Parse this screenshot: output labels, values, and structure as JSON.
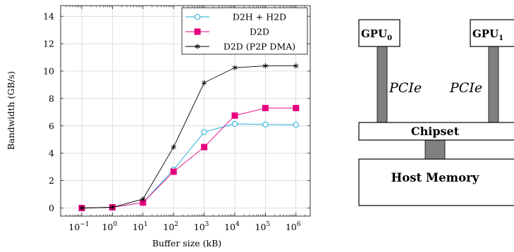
{
  "chart_data": {
    "type": "line",
    "x_scale": "log",
    "x": [
      0.1,
      1,
      10,
      100,
      1000,
      10000,
      100000,
      1000000
    ],
    "x_ticks": [
      {
        "base": "10",
        "exp": "−1"
      },
      {
        "base": "10",
        "exp": "0"
      },
      {
        "base": "10",
        "exp": "1"
      },
      {
        "base": "10",
        "exp": "2"
      },
      {
        "base": "10",
        "exp": "3"
      },
      {
        "base": "10",
        "exp": "4"
      },
      {
        "base": "10",
        "exp": "5"
      },
      {
        "base": "10",
        "exp": "6"
      }
    ],
    "y_ticks": [
      "0",
      "2",
      "4",
      "6",
      "8",
      "10",
      "12",
      "14"
    ],
    "ylim": [
      -0.3,
      15
    ],
    "xlabel": "Buffer size (kB)",
    "ylabel": "Bandwidth (GB/s)",
    "grid": true,
    "legend_position": "top-right",
    "series": [
      {
        "name": "D2H + H2D",
        "color": "#1aa9d6",
        "marker": "circle",
        "values": [
          0,
          0.05,
          0.4,
          2.8,
          5.55,
          6.15,
          6.1,
          6.08
        ]
      },
      {
        "name": "D2D",
        "color": "#e6007e",
        "marker": "square",
        "values": [
          0,
          0.05,
          0.4,
          2.65,
          4.45,
          6.75,
          7.3,
          7.3
        ]
      },
      {
        "name": "D2D (P2P DMA)",
        "color": "#000000",
        "marker": "star",
        "values": [
          0,
          0.05,
          0.65,
          4.45,
          9.15,
          10.25,
          10.38,
          10.38
        ]
      }
    ]
  },
  "diagram": {
    "gpu0": {
      "label": "GPU",
      "sub": "0"
    },
    "gpu1": {
      "label": "GPU",
      "sub": "1"
    },
    "link0_label": "PCIe",
    "link1_label": "PCIe",
    "chipset_label": "Chipset",
    "memory_label": "Host Memory",
    "connector_color": "#808080"
  }
}
